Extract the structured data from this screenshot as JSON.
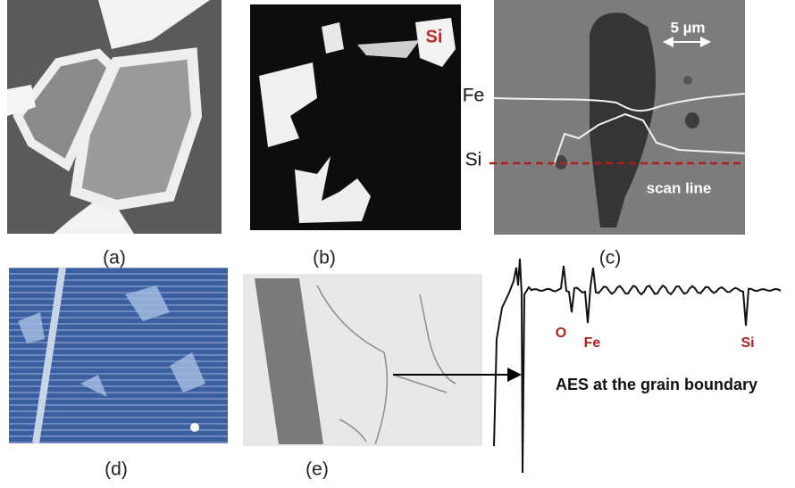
{
  "panels": [
    {
      "label": "(a)"
    },
    {
      "label": "(b)",
      "annotation": "Si"
    },
    {
      "label": "(c)",
      "scale_bar": "5 µm",
      "traces": [
        "Fe",
        "Si"
      ],
      "line_label": "scan line"
    },
    {
      "label": "(d)"
    },
    {
      "label": "(e)"
    }
  ],
  "spectrum": {
    "peaks": [
      "O",
      "Fe",
      "Si"
    ],
    "caption": "AES  at the grain boundary"
  }
}
